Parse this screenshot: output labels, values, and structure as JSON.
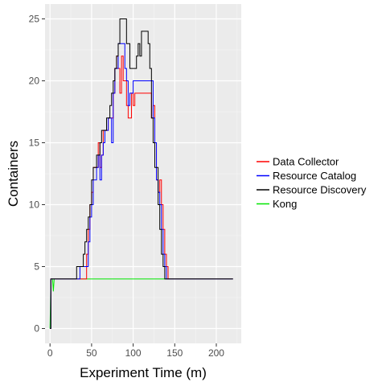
{
  "chart_data": {
    "type": "line",
    "xlabel": "Experiment Time (m)",
    "ylabel": "Containers",
    "xlim": [
      -6,
      230
    ],
    "ylim": [
      -1.2,
      26.2
    ],
    "x_ticks": [
      0,
      50,
      100,
      150,
      200
    ],
    "y_ticks": [
      0,
      5,
      10,
      15,
      20,
      25
    ],
    "x_minor": [
      25,
      75,
      125,
      175,
      225
    ],
    "y_minor": [
      2.5,
      7.5,
      12.5,
      17.5,
      22.5
    ],
    "grid": true,
    "legend_position": "right",
    "series": [
      {
        "name": "Kong",
        "color": "#00e600",
        "step": false,
        "points": [
          [
            0,
            0
          ],
          [
            1,
            4
          ],
          [
            3,
            4
          ],
          [
            4,
            3
          ],
          [
            5,
            4
          ],
          [
            220,
            4
          ]
        ]
      },
      {
        "name": "Data Collector",
        "color": "#ff0000",
        "step": true,
        "points": [
          [
            0,
            0
          ],
          [
            1,
            4
          ],
          [
            30,
            4
          ],
          [
            32,
            4
          ],
          [
            36,
            4
          ],
          [
            40,
            4
          ],
          [
            44,
            6
          ],
          [
            46,
            8
          ],
          [
            48,
            10
          ],
          [
            50,
            11
          ],
          [
            52,
            13
          ],
          [
            56,
            13
          ],
          [
            58,
            15
          ],
          [
            60,
            13
          ],
          [
            62,
            14
          ],
          [
            64,
            16
          ],
          [
            68,
            16
          ],
          [
            70,
            17
          ],
          [
            74,
            17
          ],
          [
            76,
            19
          ],
          [
            78,
            21
          ],
          [
            80,
            22
          ],
          [
            82,
            21
          ],
          [
            84,
            19
          ],
          [
            86,
            22
          ],
          [
            88,
            20
          ],
          [
            90,
            20
          ],
          [
            92,
            18
          ],
          [
            94,
            17
          ],
          [
            96,
            17
          ],
          [
            98,
            19
          ],
          [
            100,
            18
          ],
          [
            102,
            19
          ],
          [
            106,
            19
          ],
          [
            110,
            19
          ],
          [
            114,
            19
          ],
          [
            118,
            19
          ],
          [
            120,
            19
          ],
          [
            122,
            17
          ],
          [
            124,
            18
          ],
          [
            126,
            15
          ],
          [
            128,
            12
          ],
          [
            130,
            11
          ],
          [
            132,
            12
          ],
          [
            134,
            10
          ],
          [
            136,
            8
          ],
          [
            138,
            6
          ],
          [
            140,
            5
          ],
          [
            142,
            4
          ],
          [
            146,
            4
          ],
          [
            220,
            4
          ]
        ]
      },
      {
        "name": "Resource Catalog",
        "color": "#0000ff",
        "step": true,
        "points": [
          [
            0,
            0
          ],
          [
            1,
            4
          ],
          [
            3,
            4
          ],
          [
            5,
            4
          ],
          [
            10,
            4
          ],
          [
            30,
            4
          ],
          [
            34,
            4
          ],
          [
            36,
            5
          ],
          [
            40,
            5
          ],
          [
            44,
            5
          ],
          [
            46,
            7
          ],
          [
            48,
            9
          ],
          [
            50,
            10
          ],
          [
            52,
            12
          ],
          [
            56,
            13
          ],
          [
            58,
            14
          ],
          [
            60,
            12
          ],
          [
            62,
            14
          ],
          [
            64,
            15
          ],
          [
            66,
            16
          ],
          [
            68,
            16
          ],
          [
            70,
            17
          ],
          [
            72,
            17
          ],
          [
            74,
            15
          ],
          [
            76,
            19
          ],
          [
            78,
            21
          ],
          [
            80,
            21
          ],
          [
            82,
            23
          ],
          [
            84,
            23
          ],
          [
            86,
            23
          ],
          [
            90,
            21
          ],
          [
            92,
            20
          ],
          [
            94,
            18
          ],
          [
            96,
            19
          ],
          [
            100,
            20
          ],
          [
            102,
            20
          ],
          [
            106,
            20
          ],
          [
            110,
            20
          ],
          [
            114,
            20
          ],
          [
            118,
            20
          ],
          [
            122,
            20
          ],
          [
            124,
            17
          ],
          [
            126,
            15
          ],
          [
            128,
            12
          ],
          [
            130,
            11
          ],
          [
            132,
            10
          ],
          [
            134,
            8
          ],
          [
            136,
            6
          ],
          [
            138,
            5
          ],
          [
            140,
            4
          ],
          [
            142,
            4
          ],
          [
            146,
            4
          ],
          [
            220,
            4
          ]
        ]
      },
      {
        "name": "Resource Discovery",
        "color": "#000000",
        "step": true,
        "points": [
          [
            0,
            0
          ],
          [
            1,
            4
          ],
          [
            30,
            4
          ],
          [
            32,
            5
          ],
          [
            34,
            5
          ],
          [
            38,
            5
          ],
          [
            40,
            6
          ],
          [
            42,
            7
          ],
          [
            44,
            8
          ],
          [
            46,
            9
          ],
          [
            48,
            10
          ],
          [
            50,
            12
          ],
          [
            52,
            13
          ],
          [
            54,
            13
          ],
          [
            56,
            14
          ],
          [
            60,
            15
          ],
          [
            62,
            16
          ],
          [
            64,
            16
          ],
          [
            68,
            17
          ],
          [
            70,
            17
          ],
          [
            72,
            18
          ],
          [
            74,
            19
          ],
          [
            76,
            20
          ],
          [
            78,
            21
          ],
          [
            80,
            22
          ],
          [
            82,
            23
          ],
          [
            84,
            25
          ],
          [
            88,
            25
          ],
          [
            90,
            25
          ],
          [
            92,
            23
          ],
          [
            96,
            21
          ],
          [
            100,
            21
          ],
          [
            104,
            22
          ],
          [
            106,
            23
          ],
          [
            108,
            22
          ],
          [
            110,
            24
          ],
          [
            112,
            24
          ],
          [
            116,
            24
          ],
          [
            118,
            23
          ],
          [
            120,
            21
          ],
          [
            122,
            17
          ],
          [
            124,
            15
          ],
          [
            126,
            13
          ],
          [
            128,
            13
          ],
          [
            130,
            10
          ],
          [
            132,
            8
          ],
          [
            134,
            6
          ],
          [
            136,
            5
          ],
          [
            138,
            4
          ],
          [
            140,
            4
          ],
          [
            144,
            4
          ],
          [
            146,
            4
          ],
          [
            220,
            4
          ]
        ]
      }
    ]
  }
}
